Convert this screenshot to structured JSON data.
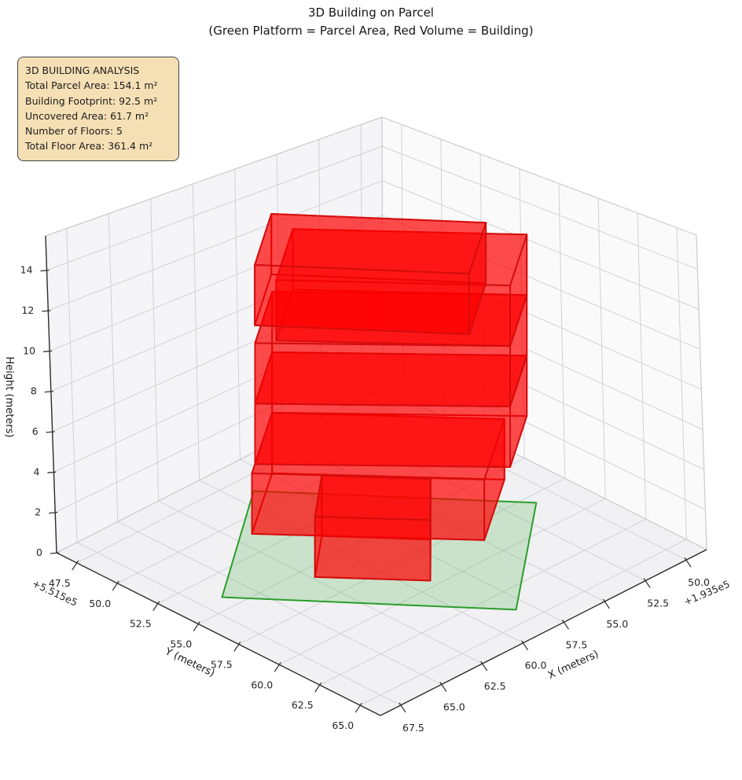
{
  "title": {
    "line1": "3D Building on Parcel",
    "line2": "(Green Platform = Parcel Area, Red Volume = Building)"
  },
  "info_box": {
    "title": "3D BUILDING ANALYSIS",
    "lines": [
      "Total Parcel Area: 154.1 m²",
      "Building Footprint: 92.5 m²",
      "Uncovered Area: 61.7 m²",
      "Number of Floors: 5",
      "Total Floor Area: 361.4 m²"
    ]
  },
  "chart_data": {
    "type": "3d-building-plot",
    "axes": {
      "x": {
        "label": "X (meters)",
        "tick_labels": [
          "50.0",
          "52.5",
          "55.0",
          "57.5",
          "60.0",
          "62.5",
          "65.0",
          "67.5"
        ],
        "tick_values": [
          50.0,
          52.5,
          55.0,
          57.5,
          60.0,
          62.5,
          65.0,
          67.5
        ],
        "offset_text": "+1.935e5",
        "range": [
          48.75,
          68.75
        ]
      },
      "y": {
        "label": "Y (meters)",
        "tick_labels": [
          "47.5",
          "50.0",
          "52.5",
          "55.0",
          "57.5",
          "60.0",
          "62.5",
          "65.0"
        ],
        "tick_values": [
          47.5,
          50.0,
          52.5,
          55.0,
          57.5,
          60.0,
          62.5,
          65.0
        ],
        "offset_text": "+5.515e5",
        "range": [
          46.25,
          66.25
        ]
      },
      "z": {
        "label": "Height (meters)",
        "tick_labels": [
          "0",
          "2",
          "4",
          "6",
          "8",
          "10",
          "12",
          "14"
        ],
        "tick_values": [
          0,
          2,
          4,
          6,
          8,
          10,
          12,
          14
        ],
        "range": [
          0,
          15.7
        ]
      }
    },
    "parcel": {
      "name": "parcel-platform",
      "polygon_xy": [
        [
          59.0,
          48.6
        ],
        [
          51.1,
          58.1
        ],
        [
          58.2,
          64.0
        ],
        [
          66.4,
          54.1
        ]
      ],
      "z": 0,
      "fill": "#30a830",
      "fill_opacity": 0.2,
      "edge": "#2a9d2a"
    },
    "building": {
      "fill": "#ff0000",
      "fill_opacity": 0.45,
      "edge": "#d40d0d",
      "edge_opacity": 0.9,
      "floor_height_m": 3,
      "num_floors": 5,
      "volumes": [
        {
          "name": "floor-1",
          "footprint": [
            [
              57.36,
              48.09
            ],
            [
              50.66,
              55.69
            ],
            [
              54.95,
              58.76
            ],
            [
              61.65,
              51.16
            ]
          ],
          "z0": 0,
          "z1": 3
        },
        {
          "name": "floor-1-annex",
          "footprint": [
            [
              59.65,
              53.46
            ],
            [
              56.55,
              57.06
            ],
            [
              59.05,
              59.56
            ],
            [
              62.35,
              55.76
            ]
          ],
          "z0": 0,
          "z1": 3
        },
        {
          "name": "floor-2",
          "footprint": [
            [
              57.36,
              48.09
            ],
            [
              49.8,
              56.2
            ],
            [
              53.4,
              58.8
            ],
            [
              61.0,
              50.7
            ]
          ],
          "z0": 3,
          "z1": 6
        },
        {
          "name": "floor-3",
          "footprint": [
            [
              57.36,
              48.09
            ],
            [
              49.8,
              56.2
            ],
            [
              53.4,
              58.8
            ],
            [
              61.0,
              50.7
            ]
          ],
          "z0": 6,
          "z1": 9
        },
        {
          "name": "floor-4",
          "footprint": [
            [
              56.6,
              48.6
            ],
            [
              49.8,
              56.2
            ],
            [
              53.4,
              58.8
            ],
            [
              60.2,
              51.2
            ]
          ],
          "z0": 9,
          "z1": 12
        },
        {
          "name": "floor-5",
          "footprint": [
            [
              60.0,
              50.7
            ],
            [
              54.0,
              57.9
            ],
            [
              57.6,
              60.5
            ],
            [
              63.6,
              53.3
            ]
          ],
          "z0": 12,
          "z1": 15
        }
      ]
    },
    "panes": {
      "floor_color": "#f1f1f3",
      "left_wall_color": "#f5f5f7",
      "right_wall_color": "#fafafb",
      "grid_color": "#d2d2d6"
    }
  }
}
